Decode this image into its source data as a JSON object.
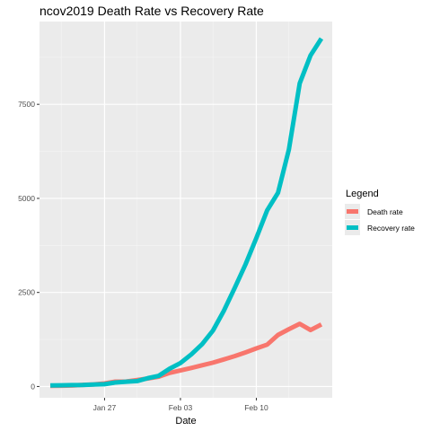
{
  "chart_data": {
    "type": "line",
    "title": "ncov2019 Death Rate vs Recovery Rate",
    "xlabel": "Date",
    "ylabel": "",
    "x_tick_labels": [
      "Jan 27",
      "Feb 03",
      "Feb 10"
    ],
    "y_tick_labels": [
      "0",
      "2500",
      "5000",
      "7500"
    ],
    "y_ticks": [
      0,
      2500,
      5000,
      7500
    ],
    "ylim": [
      -300,
      9700
    ],
    "xlim": [
      "2020-01-21",
      "2020-02-17"
    ],
    "grid": true,
    "legend": {
      "title": "Legend",
      "position": "right"
    },
    "x": [
      "2020-01-22",
      "2020-01-23",
      "2020-01-24",
      "2020-01-25",
      "2020-01-26",
      "2020-01-27",
      "2020-01-28",
      "2020-01-29",
      "2020-01-30",
      "2020-01-31",
      "2020-02-01",
      "2020-02-02",
      "2020-02-03",
      "2020-02-04",
      "2020-02-05",
      "2020-02-06",
      "2020-02-07",
      "2020-02-08",
      "2020-02-09",
      "2020-02-10",
      "2020-02-11",
      "2020-02-12",
      "2020-02-13",
      "2020-02-14",
      "2020-02-15",
      "2020-02-16"
    ],
    "series": [
      {
        "name": "Death rate",
        "color": "#F8766D",
        "values": [
          17,
          18,
          26,
          42,
          56,
          82,
          131,
          133,
          171,
          213,
          259,
          362,
          426,
          492,
          564,
          634,
          719,
          806,
          906,
          1013,
          1113,
          1371,
          1523,
          1666,
          1500,
          1650
        ]
      },
      {
        "name": "Recovery rate",
        "color": "#00BFC4",
        "values": [
          28,
          30,
          36,
          39,
          52,
          61,
          107,
          126,
          143,
          222,
          284,
          472,
          623,
          852,
          1124,
          1487,
          2011,
          2616,
          3244,
          3946,
          4683,
          5150,
          6295,
          8058,
          8800,
          9250
        ]
      }
    ]
  }
}
